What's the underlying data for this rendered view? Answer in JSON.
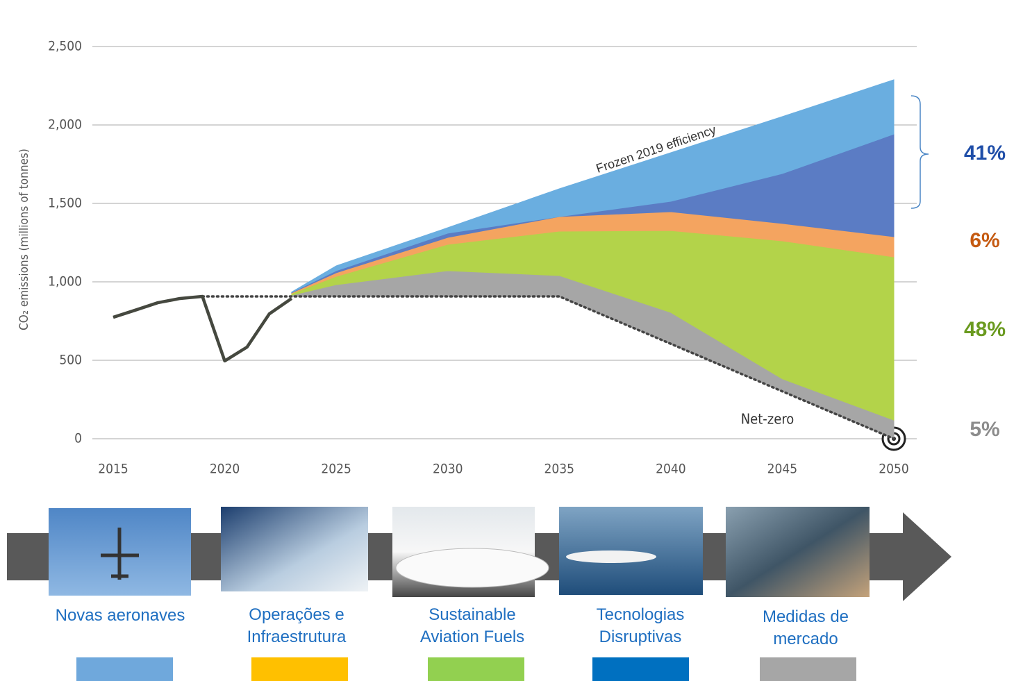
{
  "chart_data": {
    "type": "area",
    "ylabel": "CO₂ emissions (millions of tonnes)",
    "xlim": [
      2015,
      2050
    ],
    "xticks": [
      2015,
      2020,
      2025,
      2030,
      2035,
      2040,
      2045,
      2050
    ],
    "ylim": [
      0,
      2500
    ],
    "yticks": [
      0,
      500,
      {
        "value": 1000,
        "label": "1,000"
      },
      {
        "value": 1500,
        "label": "1,500"
      },
      {
        "value": 2000,
        "label": "2,000"
      },
      {
        "value": 2500,
        "label": "2,500"
      }
    ],
    "grid": true,
    "historical": {
      "color": "#45483f",
      "x": [
        2015,
        2016,
        2017,
        2018,
        2019,
        2020,
        2021,
        2022,
        2023
      ],
      "values": [
        774,
        820,
        867,
        894,
        907,
        496,
        584,
        796,
        894
      ]
    },
    "net_zero": {
      "label": "Net-zero",
      "color": "#444",
      "x": [
        2019,
        2023,
        2025,
        2030,
        2035,
        2040,
        2045,
        2050
      ],
      "values": [
        907,
        907,
        907,
        907,
        907,
        605,
        302,
        0
      ]
    },
    "frozen_label": "Frozen 2019 efficiency",
    "x": [
      2023,
      2025,
      2030,
      2035,
      2040,
      2045,
      2050
    ],
    "series": [
      {
        "name": "Medidas de\nmercado",
        "color": "#a6a6a6",
        "legend_color": "#a6a6a6",
        "values": [
          8,
          75,
          164,
          133,
          200,
          80,
          119
        ]
      },
      {
        "name": "Sustainable\nAviation Fuels",
        "color": "#b3d34a",
        "legend_color": "#92d050",
        "values": [
          10,
          53,
          168,
          283,
          522,
          879,
          1040
        ]
      },
      {
        "name": "Operações e\nInfraestrutura",
        "color": "#f4a460",
        "legend_color": "#ffc000",
        "values": [
          5,
          23,
          44,
          93,
          120,
          111,
          129
        ]
      },
      {
        "name": "Tecnologias\nDisruptivas",
        "color": "#5b7cc4",
        "legend_color": "#0070c0",
        "values": [
          3,
          13,
          27,
          0,
          66,
          318,
          654
        ]
      },
      {
        "name": "Novas aeronaves",
        "color": "#6aaee0",
        "legend_color": "#6fa8dc",
        "values": [
          2,
          31,
          35,
          177,
          310,
          363,
          346
        ]
      }
    ],
    "shares": {
      "values": [
        41,
        6,
        48,
        5
      ],
      "value_labels": [
        "41%",
        "6%",
        "48%",
        "5%"
      ],
      "colors": [
        "#1f4ea8",
        "#c55a11",
        "#6a9a1f",
        "#8c8c8c"
      ]
    }
  }
}
